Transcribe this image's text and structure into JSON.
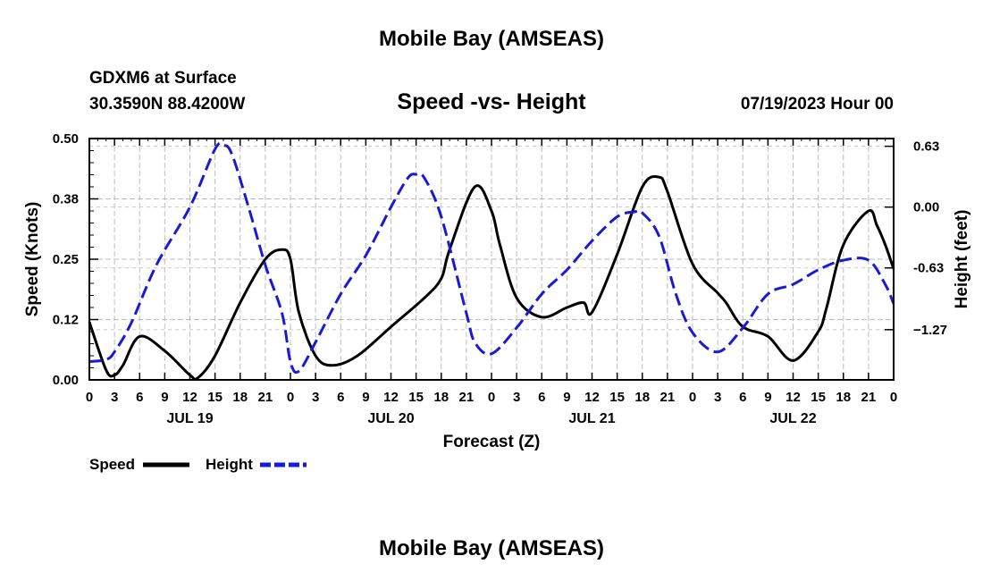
{
  "header": {
    "title": "Mobile Bay (AMSEAS)",
    "station": "GDXM6 at Surface",
    "coords": "30.3590N  88.4200W",
    "subtitle": "Speed -vs- Height",
    "datetime": "07/19/2023 Hour 00"
  },
  "footer": {
    "title": "Mobile Bay (AMSEAS)"
  },
  "chart_data": {
    "type": "line",
    "title": "Speed -vs- Height",
    "xlabel": "Forecast (Z)",
    "ylabel": "Speed (Knots)",
    "y2label": "Height (feet)",
    "xlim": [
      0,
      96
    ],
    "ylim": [
      0,
      0.5
    ],
    "y2lim": [
      -1.79,
      0.71
    ],
    "x_tick_labels": [
      "0",
      "3",
      "6",
      "9",
      "12",
      "15",
      "18",
      "21",
      "0",
      "3",
      "6",
      "9",
      "12",
      "15",
      "18",
      "21",
      "0",
      "3",
      "6",
      "9",
      "12",
      "15",
      "18",
      "21",
      "0",
      "3",
      "6",
      "9",
      "12",
      "15",
      "18",
      "21",
      "0"
    ],
    "y_tick_labels": [
      "0.00",
      "0.12",
      "0.25",
      "0.38",
      "0.50"
    ],
    "y2_tick_labels": [
      "0.63",
      "0.00",
      "-0.63",
      "−1.27"
    ],
    "day_labels": [
      "JUL 19",
      "JUL 20",
      "JUL 21",
      "JUL 22"
    ],
    "grid": true,
    "legend": [
      {
        "name": "Speed",
        "color": "#000000",
        "style": "solid"
      },
      {
        "name": "Height",
        "color": "#1a1ad6",
        "style": "dashed"
      }
    ],
    "series": [
      {
        "name": "Speed",
        "axis": "left",
        "color": "#000000",
        "x": [
          0,
          2,
          3,
          4,
          6,
          9,
          12,
          13,
          15,
          18,
          21,
          23,
          24,
          25,
          27,
          29,
          32,
          36,
          40,
          42,
          43,
          46,
          48,
          49,
          51,
          54,
          57,
          59,
          60,
          63,
          66,
          68,
          69,
          72,
          75,
          76,
          78,
          81,
          84,
          87,
          88,
          90,
          93,
          94,
          95,
          96
        ],
        "y": [
          0.12,
          0.02,
          0.01,
          0.03,
          0.09,
          0.06,
          0.01,
          0.005,
          0.05,
          0.16,
          0.25,
          0.27,
          0.25,
          0.14,
          0.05,
          0.03,
          0.05,
          0.11,
          0.17,
          0.21,
          0.27,
          0.4,
          0.35,
          0.28,
          0.17,
          0.13,
          0.15,
          0.16,
          0.14,
          0.26,
          0.4,
          0.42,
          0.39,
          0.24,
          0.18,
          0.16,
          0.11,
          0.09,
          0.04,
          0.1,
          0.15,
          0.28,
          0.35,
          0.32,
          0.28,
          0.23
        ]
      },
      {
        "name": "Height",
        "axis": "right",
        "color": "#1a1ad6",
        "x": [
          0,
          2,
          3,
          5,
          8,
          12,
          15,
          16,
          17,
          19,
          21,
          23,
          24,
          25,
          27,
          30,
          33,
          36,
          38,
          39,
          40,
          42,
          45,
          46,
          48,
          51,
          54,
          57,
          60,
          63,
          65,
          66,
          68,
          70,
          72,
          75,
          78,
          81,
          84,
          87,
          90,
          93,
          95,
          96
        ],
        "y": [
          -1.6,
          -1.58,
          -1.5,
          -1.2,
          -0.6,
          0,
          0.6,
          0.64,
          0.55,
          0,
          -0.6,
          -1.1,
          -1.6,
          -1.7,
          -1.4,
          -0.9,
          -0.5,
          0,
          0.3,
          0.34,
          0.3,
          -0.1,
          -1.1,
          -1.4,
          -1.52,
          -1.25,
          -0.9,
          -0.65,
          -0.35,
          -0.1,
          -0.05,
          -0.06,
          -0.3,
          -0.9,
          -1.3,
          -1.5,
          -1.25,
          -0.9,
          -0.8,
          -0.65,
          -0.55,
          -0.55,
          -0.8,
          -1.0
        ]
      }
    ]
  }
}
